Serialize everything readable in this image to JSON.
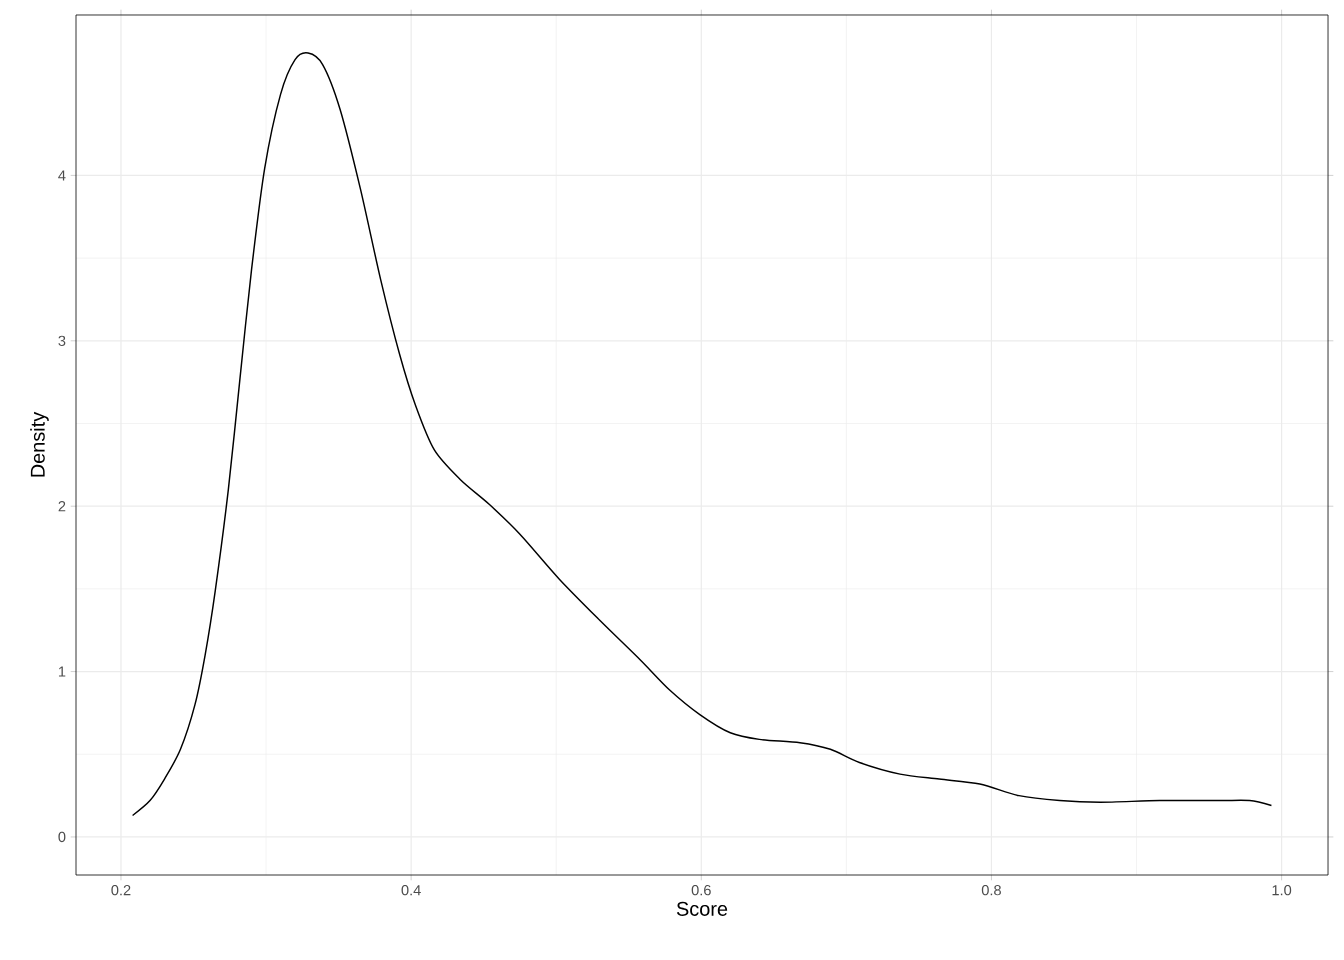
{
  "chart_data": {
    "type": "line",
    "xlabel": "Score",
    "ylabel": "Density",
    "color": "#000000",
    "grid": true,
    "xlim": [
      0.169,
      1.032
    ],
    "ylim": [
      -0.23,
      4.97
    ],
    "xticks": [
      0.2,
      0.4,
      0.6,
      0.8,
      {
        "value": 1.0,
        "label": "1.0"
      }
    ],
    "yticks": [
      0,
      1,
      2,
      3,
      4
    ],
    "x": [
      0.208,
      0.22,
      0.23,
      0.241,
      0.251,
      0.258,
      0.265,
      0.274,
      0.282,
      0.29,
      0.299,
      0.31,
      0.32,
      0.329,
      0.339,
      0.351,
      0.365,
      0.379,
      0.392,
      0.403,
      0.416,
      0.434,
      0.454,
      0.475,
      0.502,
      0.53,
      0.558,
      0.578,
      0.599,
      0.62,
      0.64,
      0.668,
      0.689,
      0.709,
      0.737,
      0.764,
      0.792,
      0.819,
      0.847,
      0.875,
      0.916,
      0.957,
      0.978,
      0.993
    ],
    "values": [
      0.13,
      0.22,
      0.35,
      0.53,
      0.8,
      1.1,
      1.49,
      2.1,
      2.77,
      3.43,
      4.04,
      4.49,
      4.7,
      4.74,
      4.67,
      4.4,
      3.92,
      3.37,
      2.92,
      2.61,
      2.34,
      2.16,
      2.01,
      1.83,
      1.56,
      1.31,
      1.07,
      0.89,
      0.74,
      0.63,
      0.59,
      0.57,
      0.53,
      0.45,
      0.38,
      0.35,
      0.32,
      0.25,
      0.22,
      0.21,
      0.22,
      0.22,
      0.22,
      0.19
    ]
  }
}
